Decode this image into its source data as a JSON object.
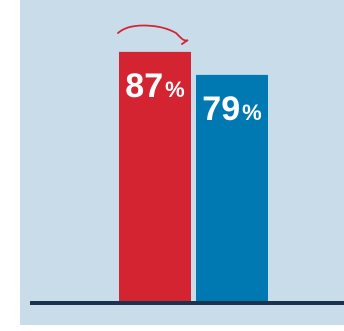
{
  "chart_data": {
    "type": "bar",
    "categories": [
      "",
      ""
    ],
    "values": [
      87,
      79
    ],
    "value_labels": [
      "87",
      "79"
    ],
    "unit": "%",
    "ylim": [
      0,
      100
    ],
    "grid": false,
    "colors": [
      "#d42331",
      "#0079b2"
    ],
    "panel_color": "#c9dcea",
    "baseline_color": "#1c3350",
    "annotation_color": "#d42331"
  }
}
